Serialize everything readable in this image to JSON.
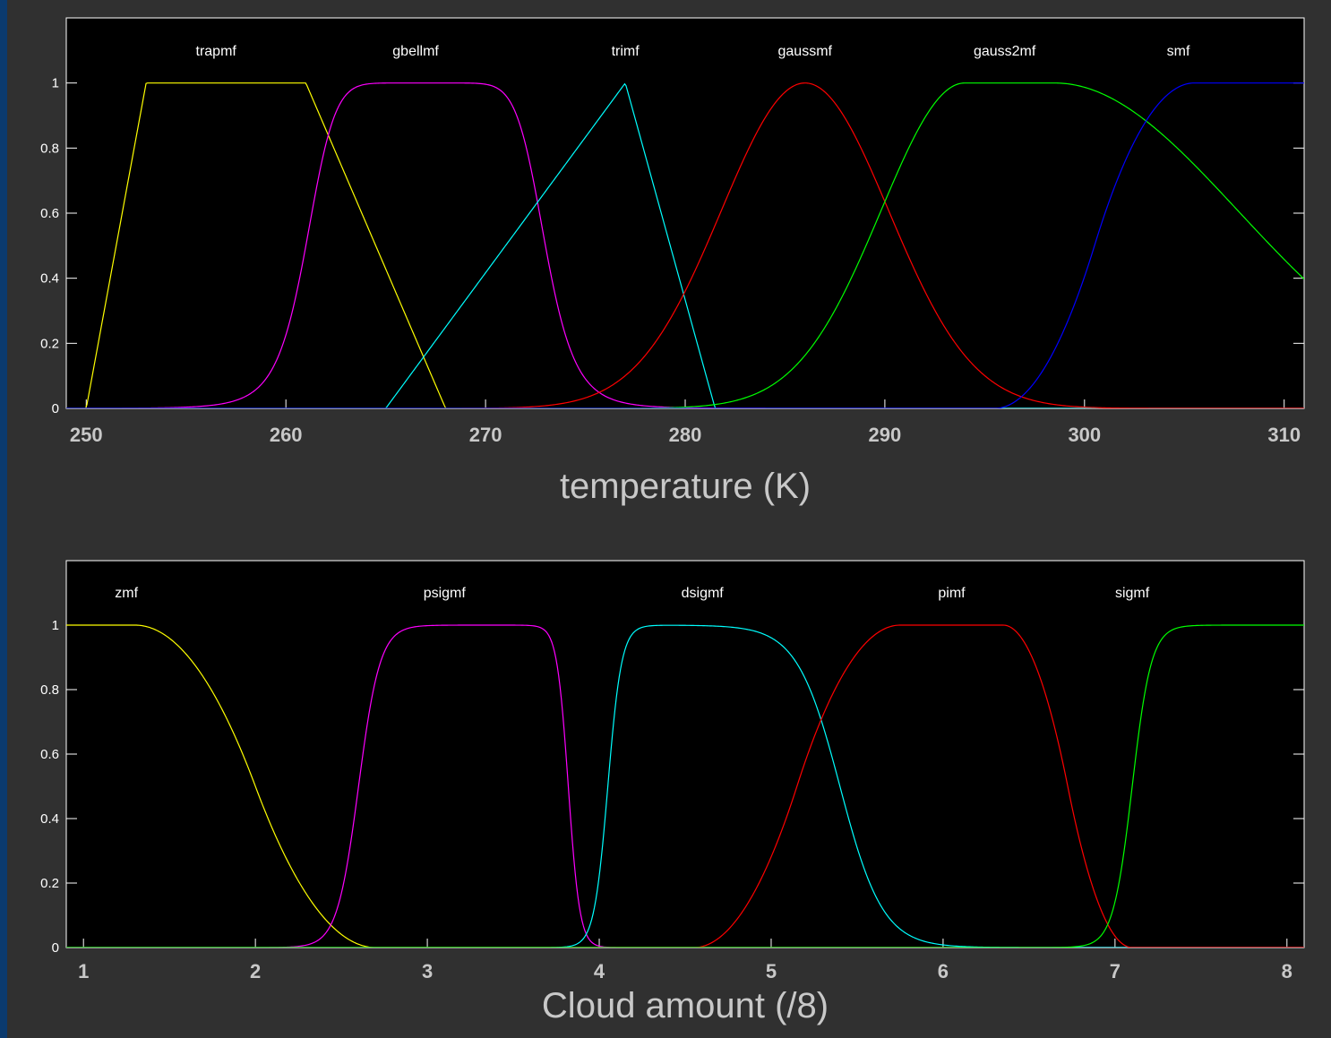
{
  "colors": {
    "frame_background": "#303030",
    "outer_background": "#0b3a6e",
    "plot_background": "#000000",
    "axis_color": "#ffffff"
  },
  "chart_data": [
    {
      "type": "line",
      "xlabel": "temperature (K)",
      "ylabel": "",
      "xlim": [
        249,
        311
      ],
      "ylim": [
        0,
        1.2
      ],
      "xticks": [
        250,
        260,
        270,
        280,
        290,
        300,
        310
      ],
      "yticks": [
        0,
        0.2,
        0.4,
        0.6,
        0.8,
        1
      ],
      "ytick_labels": [
        "0",
        "0.2",
        "0.4",
        "0.6",
        "0.8",
        "1"
      ],
      "grid": false,
      "series": [
        {
          "name": "trapmf",
          "color": "#ffff00",
          "label_x": 256.5,
          "fn": "trapmf",
          "params": [
            250,
            253,
            261,
            268
          ]
        },
        {
          "name": "gbellmf",
          "color": "#ff00ff",
          "label_x": 266.5,
          "fn": "gbellmf",
          "params": [
            6,
            4,
            267
          ]
        },
        {
          "name": "trimf",
          "color": "#00ffff",
          "label_x": 277,
          "fn": "trimf",
          "params": [
            265,
            277,
            281.5
          ]
        },
        {
          "name": "gaussmf",
          "color": "#ff0000",
          "label_x": 286,
          "fn": "gaussmf",
          "params": [
            4.2,
            286
          ]
        },
        {
          "name": "gauss2mf",
          "color": "#00ff00",
          "label_x": 296,
          "fn": "gauss2mf",
          "params": [
            4.2,
            294,
            9.2,
            298.5
          ]
        },
        {
          "name": "smf",
          "color": "#0000ff",
          "label_x": 304.7,
          "fn": "smf",
          "params": [
            295.5,
            305.5
          ]
        }
      ]
    },
    {
      "type": "line",
      "xlabel": "Cloud amount (/8)",
      "ylabel": "",
      "xlim": [
        0.9,
        8.1
      ],
      "ylim": [
        0,
        1.2
      ],
      "xticks": [
        1,
        2,
        3,
        4,
        5,
        6,
        7,
        8
      ],
      "yticks": [
        0,
        0.2,
        0.4,
        0.6,
        0.8,
        1
      ],
      "ytick_labels": [
        "0",
        "0.2",
        "0.4",
        "0.6",
        "0.8",
        "1"
      ],
      "grid": false,
      "series": [
        {
          "name": "zmf",
          "color": "#ffff00",
          "label_x": 1.25,
          "fn": "zmf",
          "params": [
            1.3,
            2.7
          ]
        },
        {
          "name": "psigmf",
          "color": "#ff00ff",
          "label_x": 3.1,
          "fn": "psigmf",
          "params": [
            16,
            2.6,
            -30,
            3.82
          ]
        },
        {
          "name": "dsigmf",
          "color": "#00ffff",
          "label_x": 4.6,
          "fn": "dsigmf",
          "params": [
            25,
            4.05,
            8,
            5.4
          ]
        },
        {
          "name": "pimf",
          "color": "#ff0000",
          "label_x": 6.05,
          "fn": "pimf",
          "params": [
            4.55,
            5.75,
            6.35,
            7.1
          ]
        },
        {
          "name": "sigmf",
          "color": "#00ff00",
          "label_x": 7.1,
          "fn": "sigmf",
          "params": [
            18,
            7.1
          ]
        }
      ]
    }
  ]
}
